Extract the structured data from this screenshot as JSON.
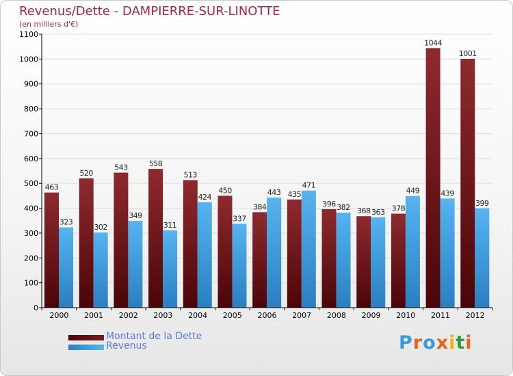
{
  "title": "Revenus/Dette - DAMPIERRE-SUR-LINOTTE",
  "subtitle": "(en milliers d'€)",
  "legend": {
    "debt": "Montant de la Dette",
    "revenue": "Revenus"
  },
  "logo": "Proxiti",
  "colors": {
    "debt": "#7a1a1e",
    "revenue": "#3a98dc",
    "title": "#a6264a",
    "legend_text": "#5b7bd5"
  },
  "chart_data": {
    "type": "bar",
    "categories": [
      "2000",
      "2001",
      "2002",
      "2003",
      "2004",
      "2005",
      "2006",
      "2007",
      "2008",
      "2009",
      "2010",
      "2011",
      "2012"
    ],
    "series": [
      {
        "name": "Montant de la Dette",
        "values": [
          463,
          520,
          543,
          558,
          513,
          450,
          384,
          435,
          396,
          368,
          378,
          1044,
          1001
        ]
      },
      {
        "name": "Revenus",
        "values": [
          323,
          302,
          349,
          311,
          424,
          337,
          443,
          471,
          382,
          363,
          449,
          439,
          399
        ]
      }
    ],
    "yticks": [
      0,
      100,
      200,
      300,
      400,
      500,
      600,
      700,
      800,
      900,
      1000,
      1100
    ],
    "ylim": [
      0,
      1100
    ],
    "grid": true,
    "legend_position": "bottom-left"
  }
}
